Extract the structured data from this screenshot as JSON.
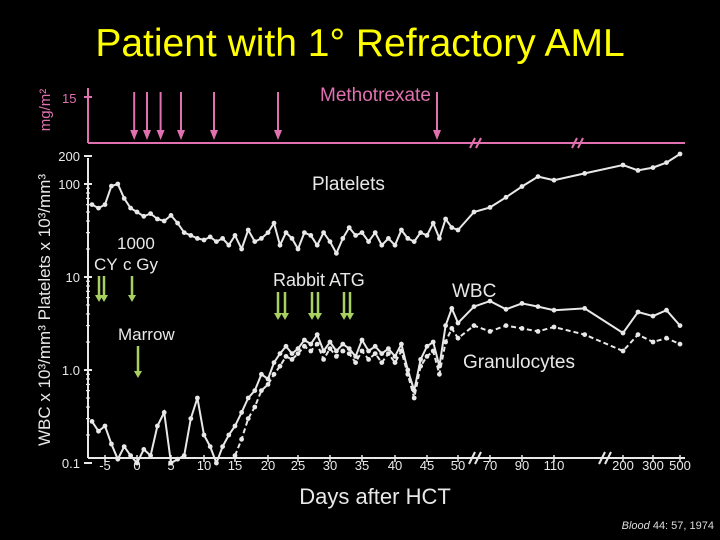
{
  "title": "Patient with 1° Refractory AML",
  "citation": {
    "journal": "Blood",
    "rest": " 44: 57, 1974"
  },
  "colors": {
    "background": "#000000",
    "title": "#ffff00",
    "methotrexate": "#e070b0",
    "series": "#e8e8e8",
    "arrows": "#a8d060"
  },
  "chart_data": [
    {
      "type": "line",
      "title": "",
      "ylabel": "mg/m²",
      "series": [
        {
          "name": "Methotrexate",
          "y_tick": "15"
        }
      ],
      "dose_days": [
        -2,
        0,
        2,
        5,
        10,
        20,
        45
      ],
      "break_marks": [
        "50-70",
        "110-200"
      ]
    },
    {
      "type": "line",
      "xlabel": "Days after HCT",
      "x_ticks": [
        "-5",
        "0",
        "5",
        "10",
        "15",
        "20",
        "25",
        "30",
        "35",
        "40",
        "45",
        "50",
        "70",
        "90",
        "110",
        "200",
        "300",
        "500"
      ],
      "ylabel": "WBC x 10³/mm³   Platelets x 10³/mm³",
      "y_ticks": [
        "200",
        "100",
        "10",
        "1.0",
        "0.1"
      ],
      "ylim": [
        0.1,
        200
      ],
      "yscale": "log",
      "annotations": {
        "cy": "CY",
        "tbi_dose": "1000",
        "tbi_unit": "c Gy",
        "marrow": "Marrow",
        "atg": "Rabbit ATG"
      },
      "series": [
        {
          "name": "Platelets",
          "x": [
            -7,
            -6,
            -5,
            -4,
            -3,
            -2,
            -1,
            0,
            1,
            2,
            3,
            4,
            5,
            6,
            7,
            8,
            9,
            10,
            11,
            12,
            13,
            14,
            15,
            16,
            17,
            18,
            19,
            20,
            21,
            22,
            23,
            24,
            25,
            26,
            27,
            28,
            29,
            30,
            31,
            32,
            33,
            34,
            35,
            36,
            37,
            38,
            39,
            40,
            41,
            42,
            43,
            44,
            45,
            46,
            47,
            48,
            49,
            50,
            60,
            70,
            80,
            90,
            100,
            110,
            150,
            200,
            250,
            300,
            400,
            500
          ],
          "y": [
            60,
            55,
            60,
            95,
            100,
            70,
            55,
            50,
            45,
            48,
            42,
            40,
            46,
            38,
            30,
            28,
            26,
            25,
            27,
            24,
            26,
            22,
            28,
            20,
            32,
            24,
            26,
            30,
            38,
            22,
            30,
            26,
            20,
            30,
            28,
            22,
            30,
            24,
            18,
            26,
            34,
            28,
            30,
            24,
            30,
            22,
            26,
            22,
            32,
            26,
            24,
            30,
            28,
            38,
            26,
            42,
            34,
            32,
            50,
            56,
            72,
            94,
            120,
            110,
            130,
            160,
            140,
            150,
            170,
            210
          ]
        },
        {
          "name": "WBC",
          "x": [
            -7,
            -6,
            -5,
            -4,
            -3,
            -2,
            -1,
            0,
            1,
            2,
            3,
            4,
            5,
            6,
            7,
            8,
            9,
            10,
            11,
            12,
            13,
            14,
            15,
            16,
            17,
            18,
            19,
            20,
            21,
            22,
            23,
            24,
            25,
            26,
            27,
            28,
            29,
            30,
            31,
            32,
            33,
            34,
            35,
            36,
            37,
            38,
            39,
            40,
            41,
            42,
            43,
            44,
            45,
            46,
            47,
            48,
            49,
            50,
            60,
            70,
            80,
            90,
            100,
            110,
            150,
            200,
            250,
            300,
            400,
            500
          ],
          "y": [
            0.28,
            0.22,
            0.25,
            0.16,
            0.11,
            0.15,
            0.12,
            0.1,
            0.14,
            0.12,
            0.25,
            0.35,
            0.1,
            0.11,
            0.12,
            0.3,
            0.5,
            0.2,
            0.15,
            0.1,
            0.15,
            0.2,
            0.25,
            0.35,
            0.5,
            0.6,
            0.9,
            0.8,
            1.2,
            1.5,
            1.8,
            1.5,
            1.7,
            2.1,
            1.9,
            2.4,
            1.6,
            2.0,
            1.6,
            1.9,
            1.7,
            1.4,
            2.1,
            1.6,
            1.8,
            1.5,
            1.7,
            1.4,
            1.9,
            1.0,
            0.6,
            1.3,
            1.8,
            2.0,
            1.1,
            3.0,
            4.6,
            3.2,
            4.8,
            5.5,
            4.5,
            5.2,
            4.8,
            4.4,
            4.6,
            2.5,
            4.2,
            3.8,
            4.4,
            3.0
          ]
        },
        {
          "name": "Granulocytes",
          "x": [
            15,
            16,
            17,
            18,
            19,
            20,
            21,
            22,
            23,
            24,
            25,
            26,
            27,
            28,
            29,
            30,
            31,
            32,
            33,
            34,
            35,
            36,
            37,
            38,
            39,
            40,
            41,
            42,
            43,
            44,
            45,
            46,
            47,
            48,
            49,
            50,
            60,
            70,
            80,
            90,
            100,
            110,
            150,
            200,
            250,
            300,
            400,
            500
          ],
          "y": [
            0.12,
            0.18,
            0.3,
            0.4,
            0.6,
            0.7,
            0.9,
            1.1,
            1.4,
            1.3,
            1.5,
            1.8,
            1.6,
            1.9,
            1.3,
            1.7,
            1.4,
            1.6,
            1.5,
            1.2,
            1.6,
            1.3,
            1.5,
            1.2,
            1.5,
            1.2,
            1.6,
            0.9,
            0.5,
            1.1,
            1.4,
            1.6,
            0.9,
            2.0,
            2.8,
            2.2,
            3.0,
            2.6,
            3.0,
            2.8,
            2.6,
            2.9,
            2.4,
            1.6,
            2.4,
            2.0,
            2.2,
            1.9
          ]
        }
      ]
    }
  ]
}
